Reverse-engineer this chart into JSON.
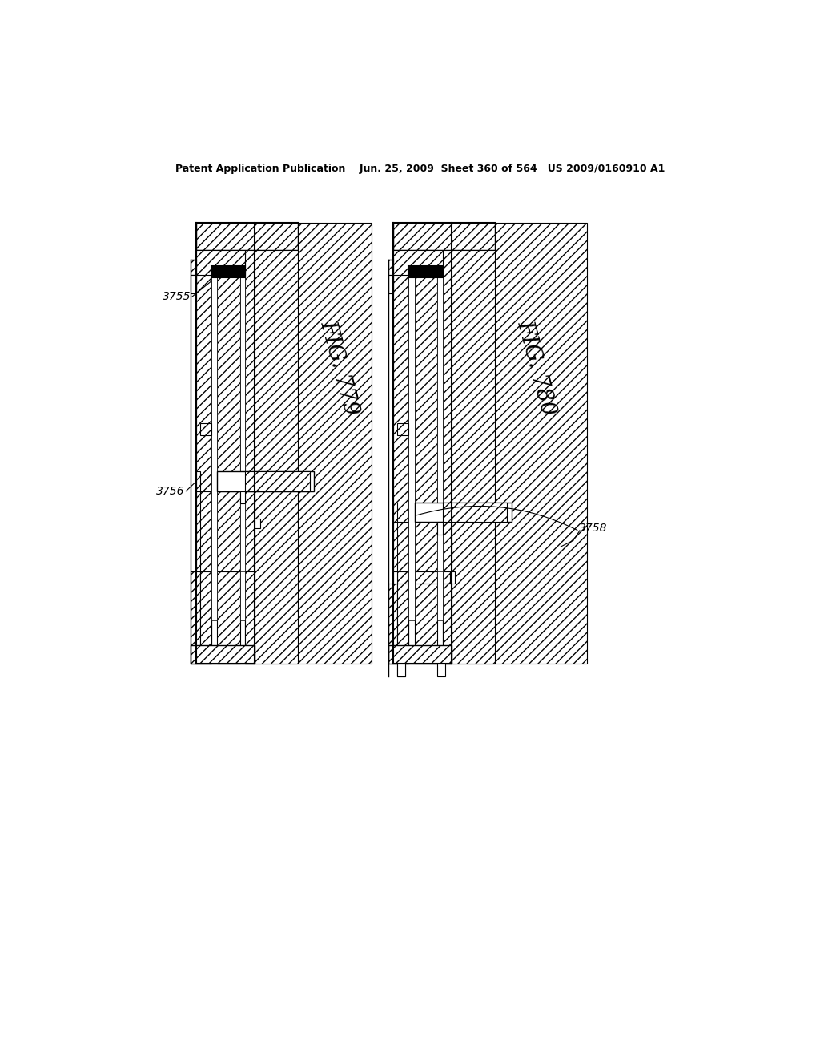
{
  "bg_color": "#ffffff",
  "line_color": "#000000",
  "header_text": "Patent Application Publication    Jun. 25, 2009  Sheet 360 of 564   US 2009/0160910 A1",
  "fig779_label": "FIG. 779",
  "fig780_label": "FIG. 780",
  "label_3755": "3755",
  "label_3756": "3756",
  "label_3758": "3758"
}
